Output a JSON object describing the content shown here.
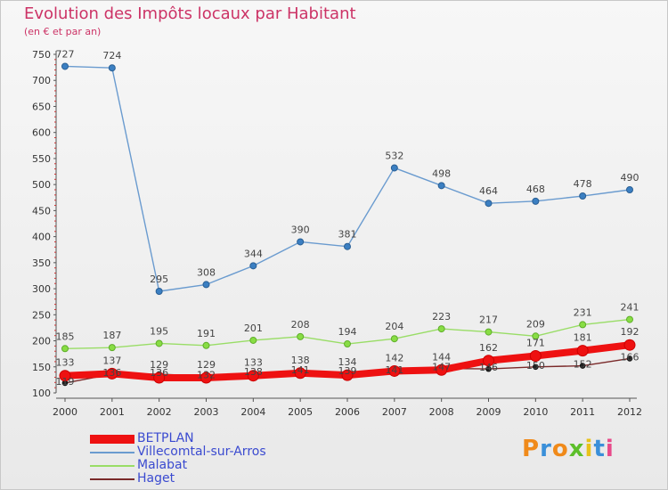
{
  "title": "Evolution des Impôts locaux par Habitant",
  "subtitle": "(en € et par an)",
  "logo": "Proxiti",
  "chart_data": {
    "type": "line",
    "x": [
      "2000",
      "2001",
      "2002",
      "2003",
      "2004",
      "2005",
      "2006",
      "2007",
      "2008",
      "2009",
      "2010",
      "2011",
      "2012"
    ],
    "ylim": [
      100,
      750
    ],
    "yticks": [
      100,
      150,
      200,
      250,
      300,
      350,
      400,
      450,
      500,
      550,
      600,
      650,
      700,
      750
    ],
    "grid": false,
    "legend_position": "bottom-left",
    "series": [
      {
        "name": "BETPLAN",
        "color": "#ee1111",
        "values": [
          133,
          137,
          129,
          129,
          133,
          138,
          134,
          142,
          144,
          162,
          171,
          181,
          192
        ]
      },
      {
        "name": "Villecomtal-sur-Arros",
        "color": "#6a9bcf",
        "values": [
          727,
          724,
          295,
          308,
          344,
          390,
          381,
          532,
          498,
          464,
          468,
          478,
          490
        ]
      },
      {
        "name": "Malabat",
        "color": "#99dd66",
        "values": [
          185,
          187,
          195,
          191,
          201,
          208,
          194,
          204,
          223,
          217,
          209,
          231,
          241
        ]
      },
      {
        "name": "Haget",
        "color": "#7a2a2a",
        "values": [
          119,
          136,
          136,
          132,
          138,
          141,
          139,
          141,
          147,
          146,
          150,
          152,
          166
        ]
      }
    ],
    "data_labels": [
      {
        "series": 0,
        "values": [
          "133",
          "137",
          "129",
          "129",
          "133",
          "138",
          "134",
          "142",
          "144",
          "162",
          "171",
          "181",
          "192"
        ]
      },
      {
        "series": 1,
        "values": [
          "727",
          "724",
          "295",
          "308",
          "344",
          "390",
          "381",
          "532",
          "498",
          "464",
          "468",
          "478",
          "490"
        ]
      },
      {
        "series": 2,
        "values": [
          "185",
          "187",
          "195",
          "191",
          "201",
          "208",
          "194",
          "204",
          "223",
          "217",
          "209",
          "231",
          "241"
        ]
      },
      {
        "series": 3,
        "values": [
          "119",
          "136",
          "136",
          "132",
          "138",
          "141",
          "139",
          "141",
          "147",
          "146",
          "150",
          "152",
          "166"
        ]
      }
    ]
  }
}
